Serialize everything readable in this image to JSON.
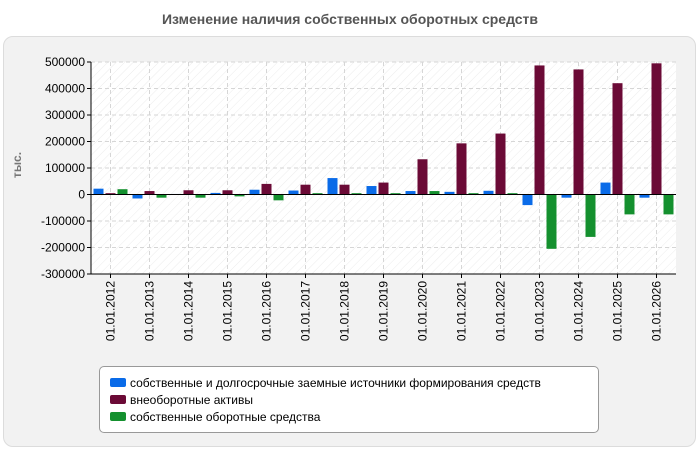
{
  "chart_data": {
    "type": "bar",
    "title": "Изменение наличия собственных оборотных средств",
    "ylabel": "тыс.",
    "ylim": [
      -300000,
      500000
    ],
    "yticks": [
      500000,
      400000,
      300000,
      200000,
      100000,
      0,
      -100000,
      -200000,
      -300000
    ],
    "grid": true,
    "legend_position": "bottom",
    "categories": [
      "01.01.2012",
      "01.01.2013",
      "01.01.2014",
      "01.01.2015",
      "01.01.2016",
      "01.01.2017",
      "01.01.2018",
      "01.01.2019",
      "01.01.2020",
      "01.01.2021",
      "01.01.2022",
      "01.01.2023",
      "01.01.2024",
      "01.01.2025",
      "01.01.2026"
    ],
    "series": [
      {
        "name": "собственные и долгосрочные заемные источники формирования средств",
        "color": "#0a6be8",
        "values": [
          22000,
          -15000,
          2000,
          6000,
          18000,
          15000,
          62000,
          32000,
          13000,
          10000,
          14000,
          -40000,
          -12000,
          45000,
          -12000
        ]
      },
      {
        "name": "внеоборотные активы",
        "color": "#6b0a36",
        "values": [
          5000,
          13000,
          16000,
          16000,
          40000,
          37000,
          37000,
          45000,
          133000,
          193000,
          230000,
          487000,
          472000,
          420000,
          495000
        ]
      },
      {
        "name": "собственные оборотные средства",
        "color": "#14902e",
        "values": [
          20000,
          -12000,
          -12000,
          -7000,
          -22000,
          5000,
          5000,
          5000,
          13000,
          5000,
          5000,
          -205000,
          -160000,
          -75000,
          -75000
        ]
      }
    ]
  }
}
